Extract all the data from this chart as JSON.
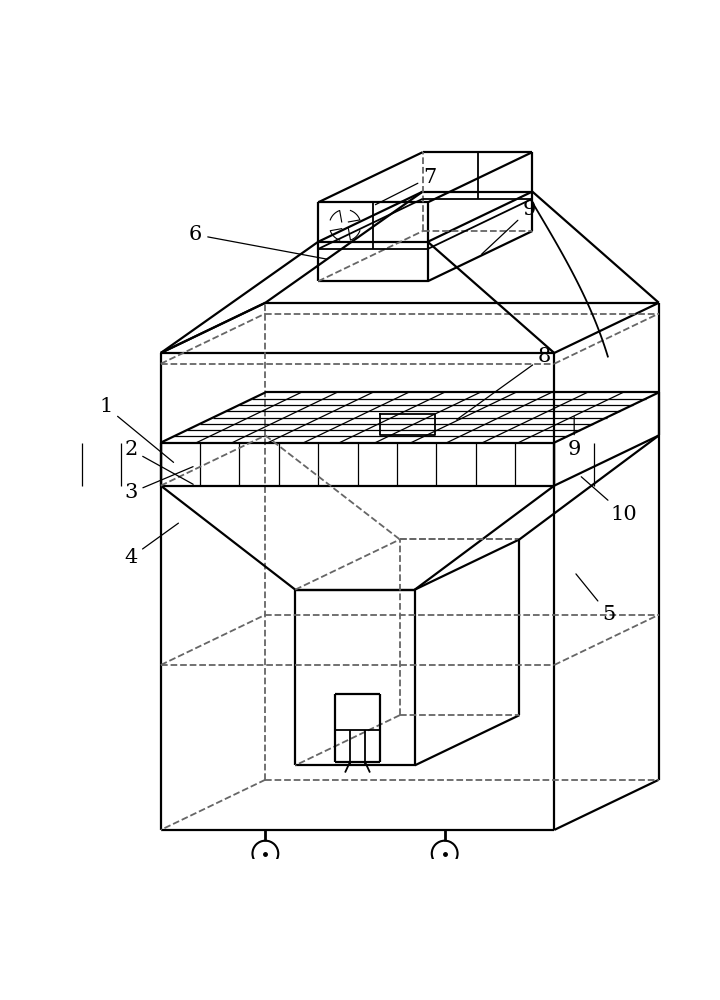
{
  "background_color": "#ffffff",
  "line_color": "#000000",
  "dashed_color": "#666666",
  "label_fontsize": 15,
  "figsize": [
    7.2,
    10.0
  ],
  "dpi": 100,
  "lw_main": 1.6,
  "lw_inner": 1.3,
  "lw_grid": 0.9
}
